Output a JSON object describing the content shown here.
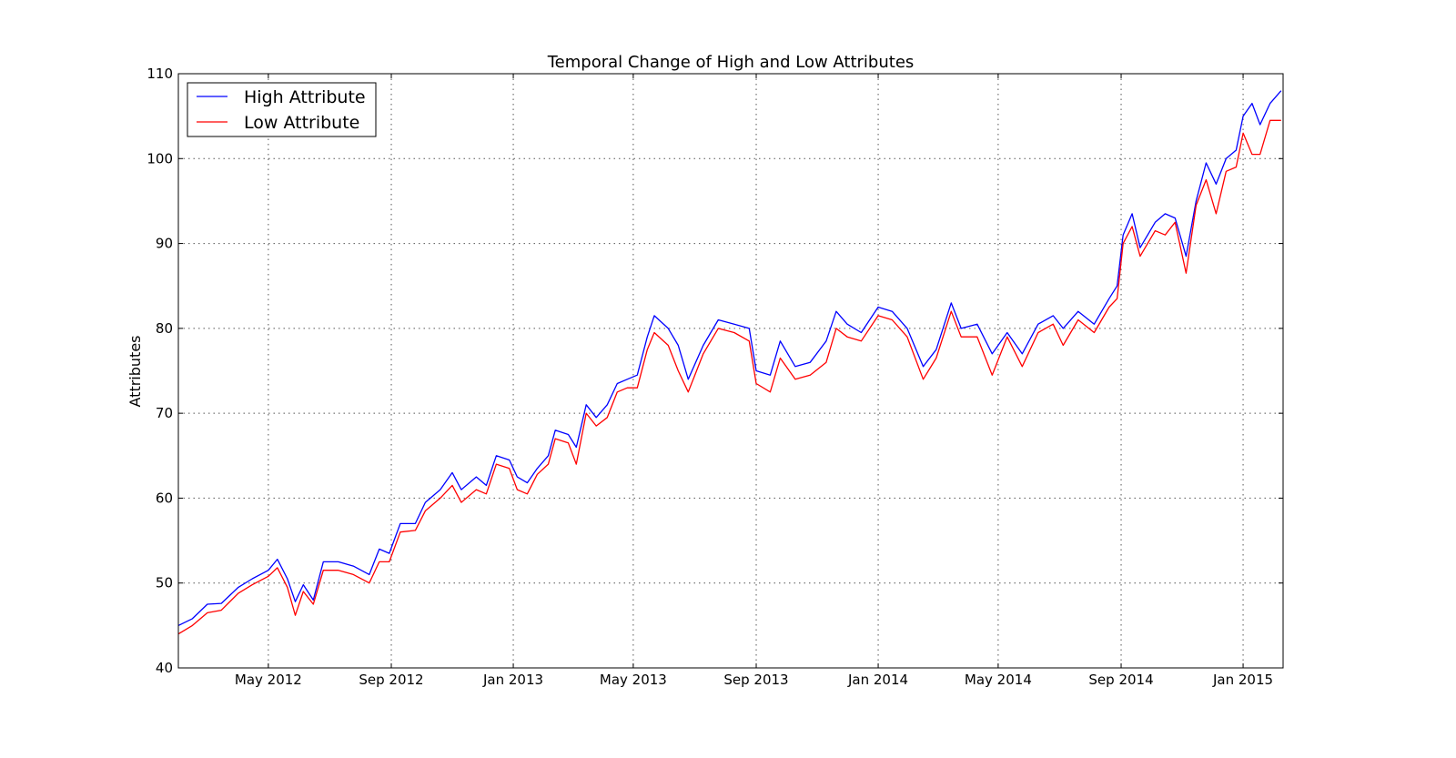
{
  "chart_data": {
    "type": "line",
    "title": "Temporal Change of High and Low Attributes",
    "xlabel": "",
    "ylabel": "Attributes",
    "x_range": [
      "2012-02-01",
      "2015-02-10"
    ],
    "ylim": [
      40,
      110
    ],
    "y_ticks": [
      40,
      50,
      60,
      70,
      80,
      90,
      100,
      110
    ],
    "x_ticks": [
      {
        "date": "2012-05-01",
        "label": "May 2012"
      },
      {
        "date": "2012-09-01",
        "label": "Sep 2012"
      },
      {
        "date": "2013-01-01",
        "label": "Jan 2013"
      },
      {
        "date": "2013-05-01",
        "label": "May 2013"
      },
      {
        "date": "2013-09-01",
        "label": "Sep 2013"
      },
      {
        "date": "2014-01-01",
        "label": "Jan 2014"
      },
      {
        "date": "2014-05-01",
        "label": "May 2014"
      },
      {
        "date": "2014-09-01",
        "label": "Sep 2014"
      },
      {
        "date": "2015-01-01",
        "label": "Jan 2015"
      }
    ],
    "grid": true,
    "legend_position": "top-left",
    "series": [
      {
        "name": "High Attribute",
        "color": "#0000ff",
        "points": [
          [
            "2012-02-01",
            45.0
          ],
          [
            "2012-02-15",
            45.8
          ],
          [
            "2012-03-01",
            47.5
          ],
          [
            "2012-03-15",
            47.6
          ],
          [
            "2012-04-01",
            49.5
          ],
          [
            "2012-04-15",
            50.5
          ],
          [
            "2012-05-01",
            51.5
          ],
          [
            "2012-05-10",
            52.8
          ],
          [
            "2012-05-20",
            50.5
          ],
          [
            "2012-05-28",
            47.8
          ],
          [
            "2012-06-05",
            49.8
          ],
          [
            "2012-06-15",
            48.0
          ],
          [
            "2012-06-25",
            52.5
          ],
          [
            "2012-07-10",
            52.5
          ],
          [
            "2012-07-25",
            52.0
          ],
          [
            "2012-08-10",
            51.0
          ],
          [
            "2012-08-20",
            54.0
          ],
          [
            "2012-08-30",
            53.5
          ],
          [
            "2012-09-10",
            57.0
          ],
          [
            "2012-09-25",
            57.0
          ],
          [
            "2012-10-05",
            59.5
          ],
          [
            "2012-10-20",
            61.0
          ],
          [
            "2012-11-01",
            63.0
          ],
          [
            "2012-11-10",
            61.0
          ],
          [
            "2012-11-25",
            62.5
          ],
          [
            "2012-12-05",
            61.5
          ],
          [
            "2012-12-15",
            65.0
          ],
          [
            "2012-12-28",
            64.5
          ],
          [
            "2013-01-05",
            62.5
          ],
          [
            "2013-01-15",
            61.8
          ],
          [
            "2013-01-25",
            63.5
          ],
          [
            "2013-02-05",
            65.0
          ],
          [
            "2013-02-12",
            68.0
          ],
          [
            "2013-02-25",
            67.5
          ],
          [
            "2013-03-05",
            66.0
          ],
          [
            "2013-03-15",
            71.0
          ],
          [
            "2013-03-25",
            69.5
          ],
          [
            "2013-04-05",
            71.0
          ],
          [
            "2013-04-15",
            73.5
          ],
          [
            "2013-04-25",
            74.0
          ],
          [
            "2013-05-05",
            74.5
          ],
          [
            "2013-05-15",
            79.0
          ],
          [
            "2013-05-22",
            81.5
          ],
          [
            "2013-06-05",
            80.0
          ],
          [
            "2013-06-15",
            78.0
          ],
          [
            "2013-06-25",
            74.0
          ],
          [
            "2013-07-10",
            78.0
          ],
          [
            "2013-07-25",
            81.0
          ],
          [
            "2013-08-10",
            80.5
          ],
          [
            "2013-08-25",
            80.0
          ],
          [
            "2013-09-01",
            75.0
          ],
          [
            "2013-09-15",
            74.5
          ],
          [
            "2013-09-25",
            78.5
          ],
          [
            "2013-10-10",
            75.5
          ],
          [
            "2013-10-25",
            76.0
          ],
          [
            "2013-11-10",
            78.5
          ],
          [
            "2013-11-20",
            82.0
          ],
          [
            "2013-12-01",
            80.5
          ],
          [
            "2013-12-15",
            79.5
          ],
          [
            "2014-01-01",
            82.5
          ],
          [
            "2014-01-15",
            82.0
          ],
          [
            "2014-01-30",
            80.0
          ],
          [
            "2014-02-15",
            75.5
          ],
          [
            "2014-02-28",
            77.5
          ],
          [
            "2014-03-15",
            83.0
          ],
          [
            "2014-03-25",
            80.0
          ],
          [
            "2014-04-10",
            80.5
          ],
          [
            "2014-04-25",
            77.0
          ],
          [
            "2014-05-10",
            79.5
          ],
          [
            "2014-05-25",
            77.0
          ],
          [
            "2014-06-10",
            80.5
          ],
          [
            "2014-06-25",
            81.5
          ],
          [
            "2014-07-05",
            80.0
          ],
          [
            "2014-07-20",
            82.0
          ],
          [
            "2014-08-05",
            80.5
          ],
          [
            "2014-08-20",
            83.5
          ],
          [
            "2014-08-28",
            85.0
          ],
          [
            "2014-09-03",
            91.0
          ],
          [
            "2014-09-12",
            93.5
          ],
          [
            "2014-09-20",
            89.5
          ],
          [
            "2014-10-05",
            92.5
          ],
          [
            "2014-10-15",
            93.5
          ],
          [
            "2014-10-25",
            93.0
          ],
          [
            "2014-11-05",
            88.5
          ],
          [
            "2014-11-15",
            95.0
          ],
          [
            "2014-11-25",
            99.5
          ],
          [
            "2014-12-05",
            97.0
          ],
          [
            "2014-12-15",
            100.0
          ],
          [
            "2014-12-25",
            101.0
          ],
          [
            "2015-01-01",
            105.0
          ],
          [
            "2015-01-10",
            106.5
          ],
          [
            "2015-01-18",
            104.0
          ],
          [
            "2015-01-28",
            106.5
          ],
          [
            "2015-02-08",
            108.0
          ]
        ]
      },
      {
        "name": "Low Attribute",
        "color": "#ff0000",
        "points": [
          [
            "2012-02-01",
            44.0
          ],
          [
            "2012-02-15",
            45.0
          ],
          [
            "2012-03-01",
            46.5
          ],
          [
            "2012-03-15",
            46.8
          ],
          [
            "2012-04-01",
            48.8
          ],
          [
            "2012-04-15",
            49.8
          ],
          [
            "2012-05-01",
            50.8
          ],
          [
            "2012-05-10",
            51.8
          ],
          [
            "2012-05-20",
            49.5
          ],
          [
            "2012-05-28",
            46.2
          ],
          [
            "2012-06-05",
            49.0
          ],
          [
            "2012-06-15",
            47.5
          ],
          [
            "2012-06-25",
            51.5
          ],
          [
            "2012-07-10",
            51.5
          ],
          [
            "2012-07-25",
            51.0
          ],
          [
            "2012-08-10",
            50.0
          ],
          [
            "2012-08-20",
            52.5
          ],
          [
            "2012-08-30",
            52.5
          ],
          [
            "2012-09-10",
            56.0
          ],
          [
            "2012-09-25",
            56.2
          ],
          [
            "2012-10-05",
            58.5
          ],
          [
            "2012-10-20",
            60.0
          ],
          [
            "2012-11-01",
            61.5
          ],
          [
            "2012-11-10",
            59.5
          ],
          [
            "2012-11-25",
            61.0
          ],
          [
            "2012-12-05",
            60.5
          ],
          [
            "2012-12-15",
            64.0
          ],
          [
            "2012-12-28",
            63.5
          ],
          [
            "2013-01-05",
            61.0
          ],
          [
            "2013-01-15",
            60.5
          ],
          [
            "2013-01-25",
            62.8
          ],
          [
            "2013-02-05",
            64.0
          ],
          [
            "2013-02-12",
            67.0
          ],
          [
            "2013-02-25",
            66.5
          ],
          [
            "2013-03-05",
            64.0
          ],
          [
            "2013-03-15",
            70.0
          ],
          [
            "2013-03-25",
            68.5
          ],
          [
            "2013-04-05",
            69.5
          ],
          [
            "2013-04-15",
            72.5
          ],
          [
            "2013-04-25",
            73.0
          ],
          [
            "2013-05-05",
            73.0
          ],
          [
            "2013-05-15",
            77.5
          ],
          [
            "2013-05-22",
            79.5
          ],
          [
            "2013-06-05",
            78.0
          ],
          [
            "2013-06-15",
            75.0
          ],
          [
            "2013-06-25",
            72.5
          ],
          [
            "2013-07-10",
            77.0
          ],
          [
            "2013-07-25",
            80.0
          ],
          [
            "2013-08-10",
            79.5
          ],
          [
            "2013-08-25",
            78.5
          ],
          [
            "2013-09-01",
            73.5
          ],
          [
            "2013-09-15",
            72.5
          ],
          [
            "2013-09-25",
            76.5
          ],
          [
            "2013-10-10",
            74.0
          ],
          [
            "2013-10-25",
            74.5
          ],
          [
            "2013-11-10",
            76.0
          ],
          [
            "2013-11-20",
            80.0
          ],
          [
            "2013-12-01",
            79.0
          ],
          [
            "2013-12-15",
            78.5
          ],
          [
            "2014-01-01",
            81.5
          ],
          [
            "2014-01-15",
            81.0
          ],
          [
            "2014-01-30",
            79.0
          ],
          [
            "2014-02-15",
            74.0
          ],
          [
            "2014-02-28",
            76.5
          ],
          [
            "2014-03-15",
            82.0
          ],
          [
            "2014-03-25",
            79.0
          ],
          [
            "2014-04-10",
            79.0
          ],
          [
            "2014-04-25",
            74.5
          ],
          [
            "2014-05-10",
            79.0
          ],
          [
            "2014-05-25",
            75.5
          ],
          [
            "2014-06-10",
            79.5
          ],
          [
            "2014-06-25",
            80.5
          ],
          [
            "2014-07-05",
            78.0
          ],
          [
            "2014-07-20",
            81.0
          ],
          [
            "2014-08-05",
            79.5
          ],
          [
            "2014-08-20",
            82.5
          ],
          [
            "2014-08-28",
            83.5
          ],
          [
            "2014-09-03",
            90.0
          ],
          [
            "2014-09-12",
            92.0
          ],
          [
            "2014-09-20",
            88.5
          ],
          [
            "2014-10-05",
            91.5
          ],
          [
            "2014-10-15",
            91.0
          ],
          [
            "2014-10-25",
            92.5
          ],
          [
            "2014-11-05",
            86.5
          ],
          [
            "2014-11-15",
            94.5
          ],
          [
            "2014-11-25",
            97.5
          ],
          [
            "2014-12-05",
            93.5
          ],
          [
            "2014-12-15",
            98.5
          ],
          [
            "2014-12-25",
            99.0
          ],
          [
            "2015-01-01",
            103.0
          ],
          [
            "2015-01-10",
            100.5
          ],
          [
            "2015-01-18",
            100.5
          ],
          [
            "2015-01-28",
            104.5
          ],
          [
            "2015-02-08",
            104.5
          ]
        ]
      }
    ]
  }
}
